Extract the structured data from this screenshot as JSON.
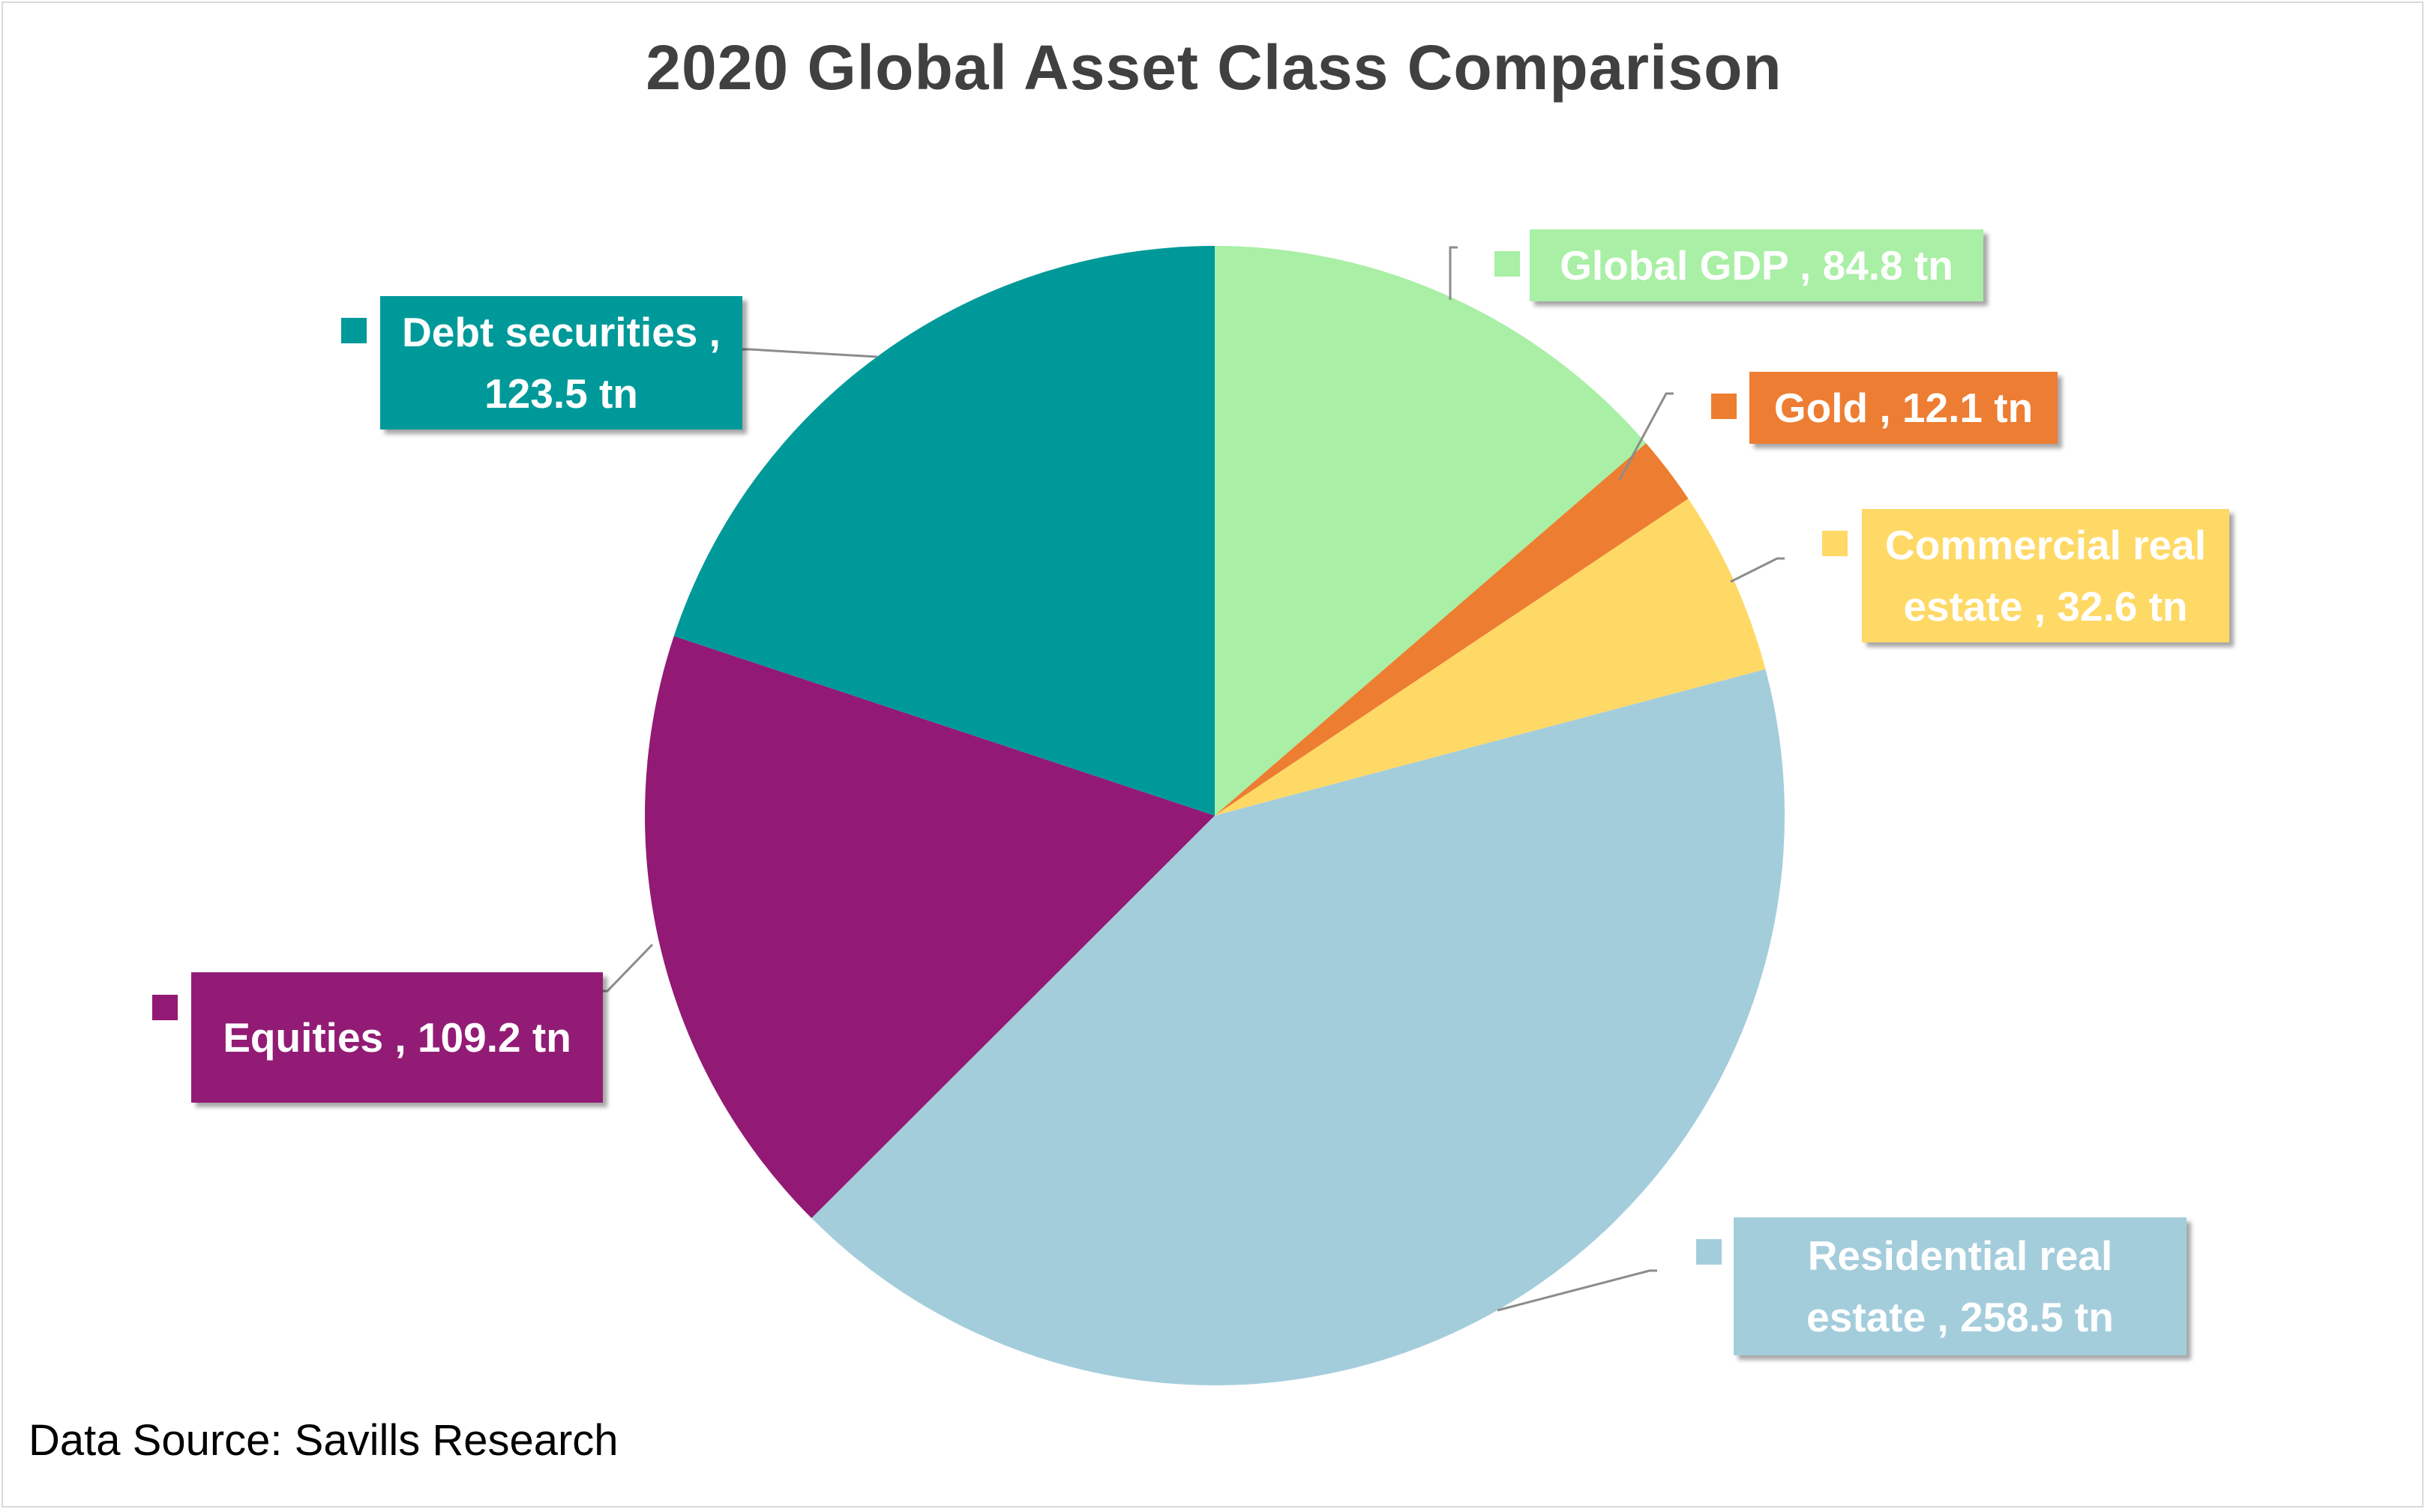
{
  "chart_data": {
    "type": "pie",
    "title": "2020 Global Asset Class Comparison",
    "unit": "tn",
    "slices": [
      {
        "name": "Global GDP",
        "value": 84.8,
        "label": "Global GDP , 84.8 tn",
        "color": "#A9EFA5"
      },
      {
        "name": "Gold",
        "value": 12.1,
        "label": "Gold , 12.1 tn",
        "color": "#ED7D31"
      },
      {
        "name": "Commercial real estate",
        "value": 32.6,
        "label": "Commercial real estate , 32.6 tn",
        "color": "#FFD966"
      },
      {
        "name": "Residential real estate",
        "value": 258.5,
        "label": "Residential real estate , 258.5 tn",
        "color": "#A4CDDC"
      },
      {
        "name": "Equities",
        "value": 109.2,
        "label": "Equities , 109.2 tn",
        "color": "#921A74"
      },
      {
        "name": "Debt securities",
        "value": 123.5,
        "label": "Debt securities , 123.5 tn",
        "color": "#009999"
      }
    ]
  },
  "footer": {
    "source": "Data Source: Savills Research"
  }
}
